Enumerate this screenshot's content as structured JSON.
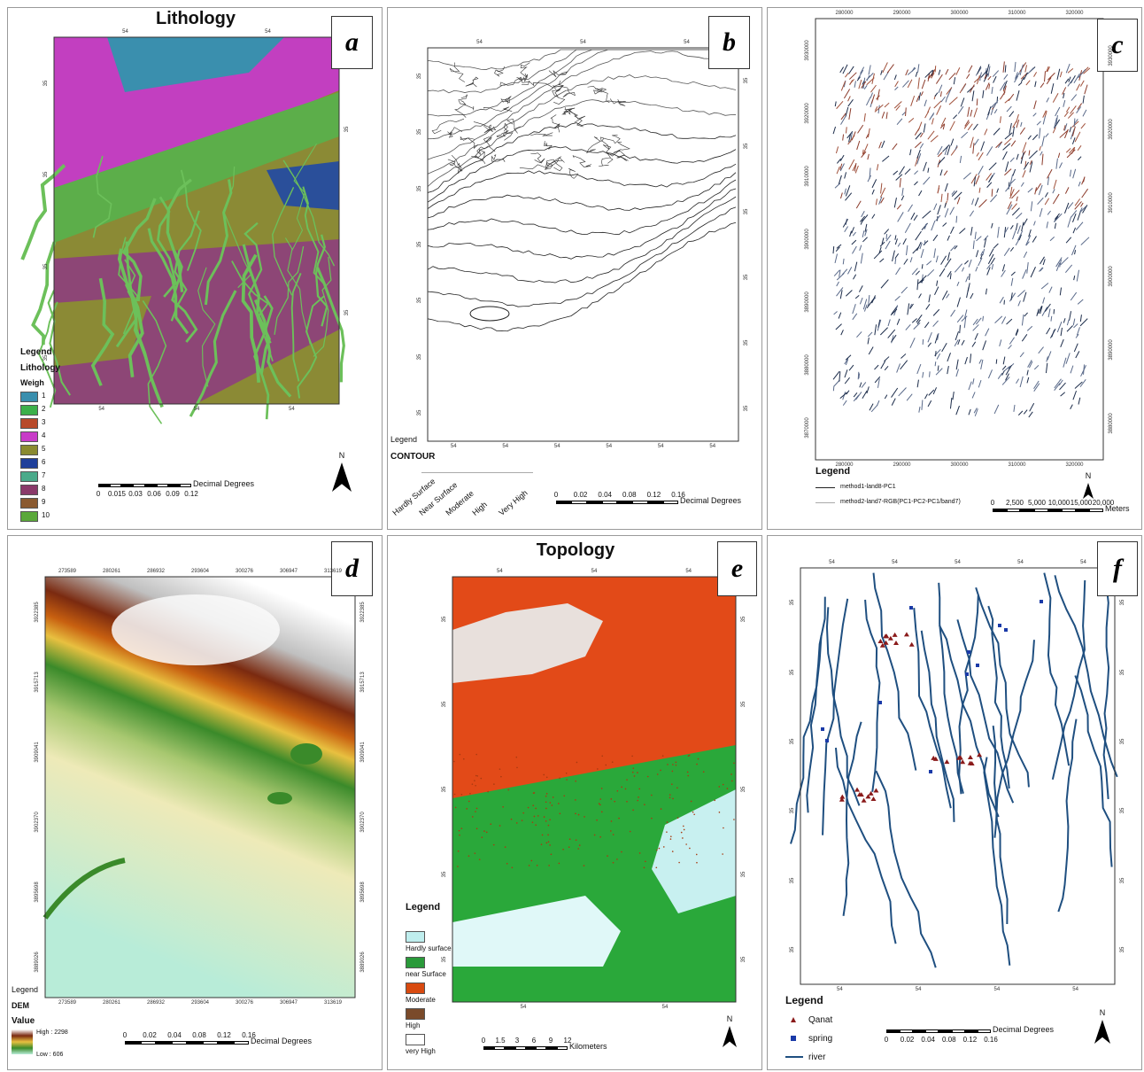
{
  "panels": [
    {
      "label": "a",
      "title": "Lithology",
      "top_ticks": [
        "54",
        "54"
      ],
      "bottom_ticks": [
        "54",
        "54",
        "54"
      ],
      "left_ticks": [
        "35",
        "35",
        "35",
        "35"
      ],
      "right_ticks": [
        "35",
        "35"
      ],
      "legend": {
        "heading": "Legend",
        "subheading": "Lithology",
        "field": "Weigh",
        "items": [
          "1",
          "2",
          "3",
          "4",
          "5",
          "6",
          "7",
          "8",
          "9",
          "10"
        ]
      },
      "scale": {
        "labels": [
          "0",
          "0.015",
          "0.03",
          "0.06",
          "0.09",
          "0.12"
        ],
        "unit": "Decimal Degrees"
      },
      "north": "N"
    },
    {
      "label": "b",
      "top_ticks": [
        "54",
        "54",
        "54"
      ],
      "bottom_ticks": [
        "54",
        "54",
        "54",
        "54",
        "54",
        "54"
      ],
      "left_ticks": [
        "35",
        "35",
        "35",
        "35",
        "35",
        "35",
        "35"
      ],
      "right_ticks": [
        "35",
        "35",
        "35",
        "35",
        "35",
        "35"
      ],
      "legend": {
        "heading": "Legend",
        "field": "CONTOUR",
        "items": [
          "Hardly Surface",
          "Near Surface",
          "Moderate",
          "High",
          "Very High"
        ]
      },
      "scale": {
        "labels": [
          "0",
          "0.02",
          "0.04",
          "0.08",
          "0.12",
          "0.16"
        ],
        "unit": "Decimal Degrees"
      }
    },
    {
      "label": "c",
      "top_ticks": [
        "280000",
        "290000",
        "300000",
        "310000",
        "320000"
      ],
      "bottom_ticks": [
        "280000",
        "290000",
        "300000",
        "310000",
        "320000"
      ],
      "left_ticks": [
        "3930000",
        "3920000",
        "3910000",
        "3900000",
        "3890000",
        "3880000",
        "3870000"
      ],
      "right_ticks": [
        "3930000",
        "3920000",
        "3910000",
        "3900000",
        "3890000",
        "3880000"
      ],
      "legend": {
        "heading": "Legend",
        "items": [
          "method1-land8-PC1",
          "method2-land7-RGB(PC1-PC2-PC1/band7)"
        ]
      },
      "scale": {
        "labels": [
          "0",
          "2,500",
          "5,000",
          "10,000",
          "15,000",
          "20,000"
        ],
        "unit": "Meters"
      },
      "north": "N"
    },
    {
      "label": "d",
      "top_ticks": [
        "273589",
        "280261",
        "286932",
        "293604",
        "300276",
        "306947",
        "313619"
      ],
      "bottom_ticks": [
        "273589",
        "280261",
        "286932",
        "293604",
        "300276",
        "306947",
        "313619"
      ],
      "left_ticks": [
        "3922385",
        "3915713",
        "3909041",
        "3902370",
        "3895698",
        "3889026"
      ],
      "right_ticks": [
        "3922385",
        "3915713",
        "3909041",
        "3902370",
        "3895698",
        "3889026"
      ],
      "legend": {
        "heading": "Legend",
        "subheading": "DEM",
        "field": "Value",
        "items": [
          "High : 2298",
          "Low : 606"
        ]
      },
      "scale": {
        "labels": [
          "0",
          "0.02",
          "0.04",
          "0.08",
          "0.12",
          "0.16"
        ],
        "unit": "Decimal Degrees"
      }
    },
    {
      "label": "e",
      "title": "Topology",
      "top_ticks": [
        "54",
        "54",
        "54"
      ],
      "bottom_ticks": [
        "54",
        "54"
      ],
      "left_ticks": [
        "35",
        "35",
        "35",
        "35",
        "35"
      ],
      "right_ticks": [
        "35",
        "35",
        "35",
        "35",
        "35"
      ],
      "legend": {
        "heading": "Legend",
        "items": [
          "Hardly surface",
          "near Surface",
          "Moderate",
          "High",
          "very High"
        ]
      },
      "scale": {
        "labels": [
          "0",
          "1.5",
          "3",
          "6",
          "9",
          "12"
        ],
        "unit": "Kilometers"
      },
      "north": "N"
    },
    {
      "label": "f",
      "top_ticks": [
        "54",
        "54",
        "54",
        "54",
        "54"
      ],
      "bottom_ticks": [
        "54",
        "54",
        "54",
        "54"
      ],
      "left_ticks": [
        "35",
        "35",
        "35",
        "35",
        "35",
        "35"
      ],
      "right_ticks": [
        "35",
        "35",
        "35",
        "35",
        "35",
        "35"
      ],
      "legend": {
        "heading": "Legend",
        "items": [
          "Qanat",
          "spring",
          "river"
        ]
      },
      "scale": {
        "labels": [
          "0",
          "0.02",
          "0.04",
          "0.08",
          "0.12",
          "0.16"
        ],
        "unit": "Decimal Degrees"
      },
      "north": "N"
    }
  ]
}
